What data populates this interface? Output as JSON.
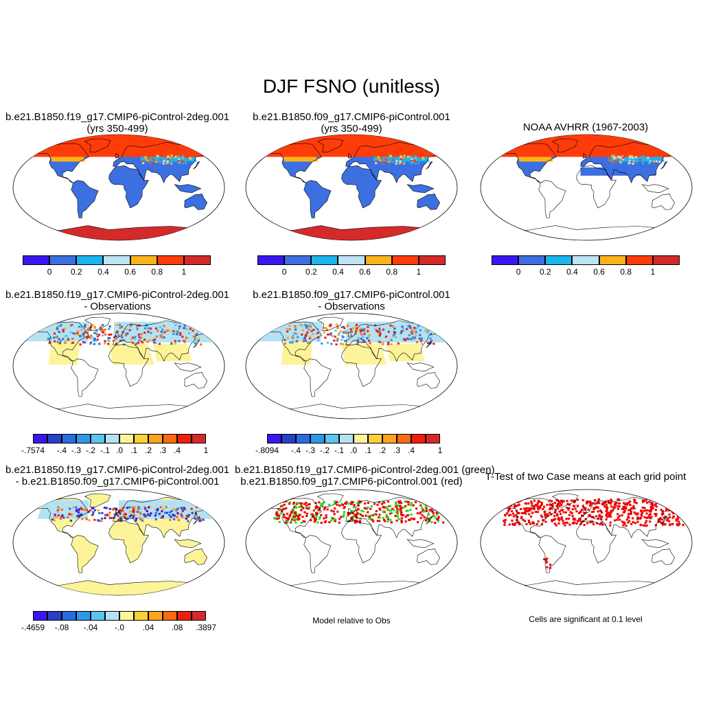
{
  "main_title": "DJF FSNO (unitless)",
  "panels": [
    {
      "title": [
        "b.e21.B1850.f19_g17.CMIP6-piControl-2deg.001",
        "(yrs 350-499)"
      ],
      "map": "case1"
    },
    {
      "title": [
        "b.e21.B1850.f09_g17.CMIP6-piControl.001",
        "(yrs 350-499)"
      ],
      "map": "case2"
    },
    {
      "title": [
        "NOAA AVHRR (1967-2003)"
      ],
      "map": "obs"
    },
    {
      "title": [
        "b.e21.B1850.f19_g17.CMIP6-piControl-2deg.001",
        "- Observations"
      ],
      "map": "diff1"
    },
    {
      "title": [
        "b.e21.B1850.f09_g17.CMIP6-piControl.001",
        "- Observations"
      ],
      "map": "diff2"
    },
    {
      "title": [
        "b.e21.B1850.f19_g17.CMIP6-piControl-2deg.001",
        "- b.e21.B1850.f09_g17.CMIP6-piControl.001"
      ],
      "map": "casediff"
    },
    {
      "title": [
        "b.e21.B1850.f19_g17.CMIP6-piControl-2deg.001 (green)",
        "b.e21.B1850.f09_g17.CMIP6-piControl.001 (red)"
      ],
      "map": "rel"
    },
    {
      "title": [
        "T-Test of two Case means at each grid point"
      ],
      "map": "ttest"
    }
  ],
  "colorbars": {
    "field": {
      "colors": [
        "#3a16f2",
        "#3c6fe0",
        "#1cb5ef",
        "#bde3f4",
        "#fbb31a",
        "#fe3c0a",
        "#d42a2a"
      ],
      "labels": [
        "0",
        "0.2",
        "0.4",
        "0.6",
        "0.8",
        "1"
      ]
    },
    "diff1": {
      "colors": [
        "#3a16f2",
        "#2740c8",
        "#2b6be0",
        "#2f97e8",
        "#5cc3ef",
        "#b4e2f2",
        "#fdf49a",
        "#fcd03a",
        "#fca322",
        "#fb6a10",
        "#f11d0d",
        "#d42a2a"
      ],
      "labels": [
        "-.7574",
        "-.4",
        "-.3",
        "-.2",
        "-.1",
        ".0",
        ".1",
        ".2",
        ".3",
        ".4",
        "1"
      ]
    },
    "diff2": {
      "colors": [
        "#3a16f2",
        "#2740c8",
        "#2b6be0",
        "#2f97e8",
        "#5cc3ef",
        "#b4e2f2",
        "#fdf49a",
        "#fcd03a",
        "#fca322",
        "#fb6a10",
        "#f11d0d",
        "#d42a2a"
      ],
      "labels": [
        "-.8094",
        "-.4",
        "-.3",
        "-.2",
        "-.1",
        ".0",
        ".1",
        ".2",
        ".3",
        ".4",
        "1"
      ]
    },
    "casediff": {
      "colors": [
        "#3a16f2",
        "#2740c8",
        "#2b6be0",
        "#2f97e8",
        "#5cc3ef",
        "#b4e2f2",
        "#fdf49a",
        "#fcd03a",
        "#fca322",
        "#fb6a10",
        "#f11d0d",
        "#d42a2a"
      ],
      "labels": [
        "-.4659",
        "-.08",
        "-.04",
        "-.0",
        ".04",
        ".08",
        ".3897"
      ]
    }
  },
  "notes": {
    "rel": "Model relative to Obs",
    "ttest": "Cells are significant at 0.1 level"
  },
  "map_colors": {
    "ocean_bg": "#ffffff",
    "land_low": "#3c6fe0",
    "snow_high": "#fe3c0a",
    "antarctic": "#d42a2a",
    "diff_pos": "#fdf49a",
    "diff_neg": "#b4e2f2",
    "rel_green": "#1ee01e",
    "rel_red": "#ee0000"
  }
}
